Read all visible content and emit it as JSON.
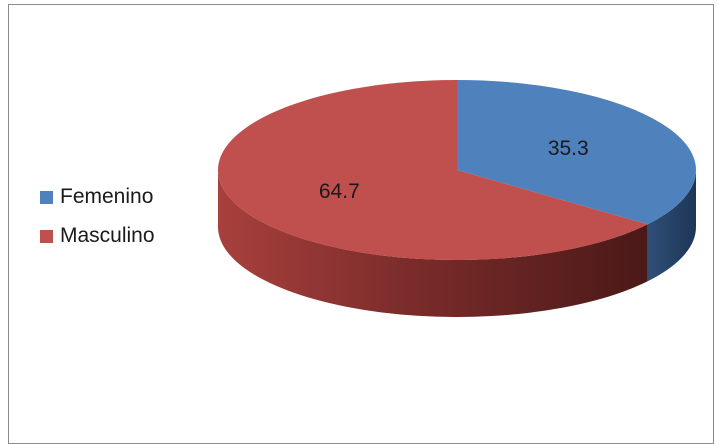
{
  "chart_data": {
    "type": "pie",
    "is_3d": true,
    "title": "",
    "labels": [
      "Femenino",
      "Masculino"
    ],
    "values": [
      35.3,
      64.7
    ],
    "colors": [
      "#4f81bd",
      "#c0504d"
    ],
    "data_labels": [
      "35.3",
      "64.7"
    ],
    "legend_position": "left"
  }
}
